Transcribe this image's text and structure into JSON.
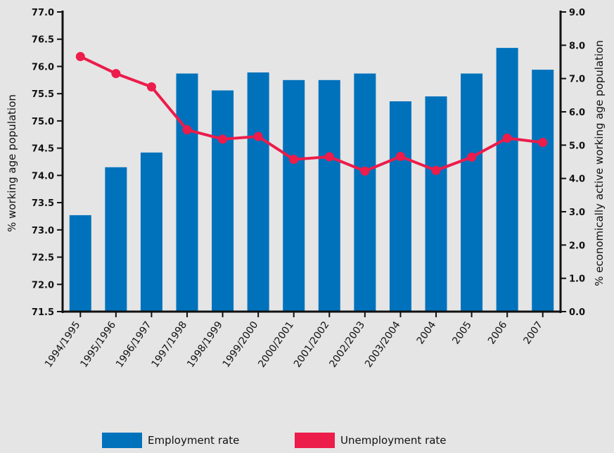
{
  "chart_data": {
    "type": "bar",
    "categories": [
      "1994/1995",
      "1995/1996",
      "1996/1997",
      "1997/1998",
      "1998/1999",
      "1999/2000",
      "2000/2001",
      "2001/2002",
      "2002/2003",
      "2003/2004",
      "2004",
      "2005",
      "2006",
      "2007"
    ],
    "series": [
      {
        "name": "Employment rate",
        "type": "bar",
        "axis": "left",
        "color": "#0072bc",
        "values": [
          73.27,
          74.15,
          74.42,
          75.87,
          75.56,
          75.89,
          75.75,
          75.75,
          75.87,
          75.36,
          75.45,
          75.87,
          76.34,
          75.94
        ]
      },
      {
        "name": "Unemployment rate",
        "type": "line",
        "axis": "right",
        "color": "#ec1c4b",
        "values": [
          7.66,
          7.15,
          6.75,
          5.46,
          5.18,
          5.26,
          4.57,
          4.65,
          4.22,
          4.66,
          4.24,
          4.64,
          5.21,
          5.08
        ]
      }
    ],
    "ylabel": "% working age population",
    "y2label": "% economically active working age population",
    "ylim": [
      71.5,
      77.0
    ],
    "y2lim": [
      0.0,
      9.0
    ],
    "yticks": [
      "71.5",
      "72.0",
      "72.5",
      "73.0",
      "73.5",
      "74.0",
      "74.5",
      "75.0",
      "75.5",
      "76.0",
      "76.5",
      "77.0"
    ],
    "y2ticks": [
      "0.0",
      "1.0",
      "2.0",
      "3.0",
      "4.0",
      "5.0",
      "6.0",
      "7.0",
      "8.0",
      "9.0"
    ],
    "grid": false,
    "legend_position": "bottom"
  },
  "legend": {
    "employment_label": "Employment rate",
    "unemployment_label": "Unemployment rate"
  }
}
